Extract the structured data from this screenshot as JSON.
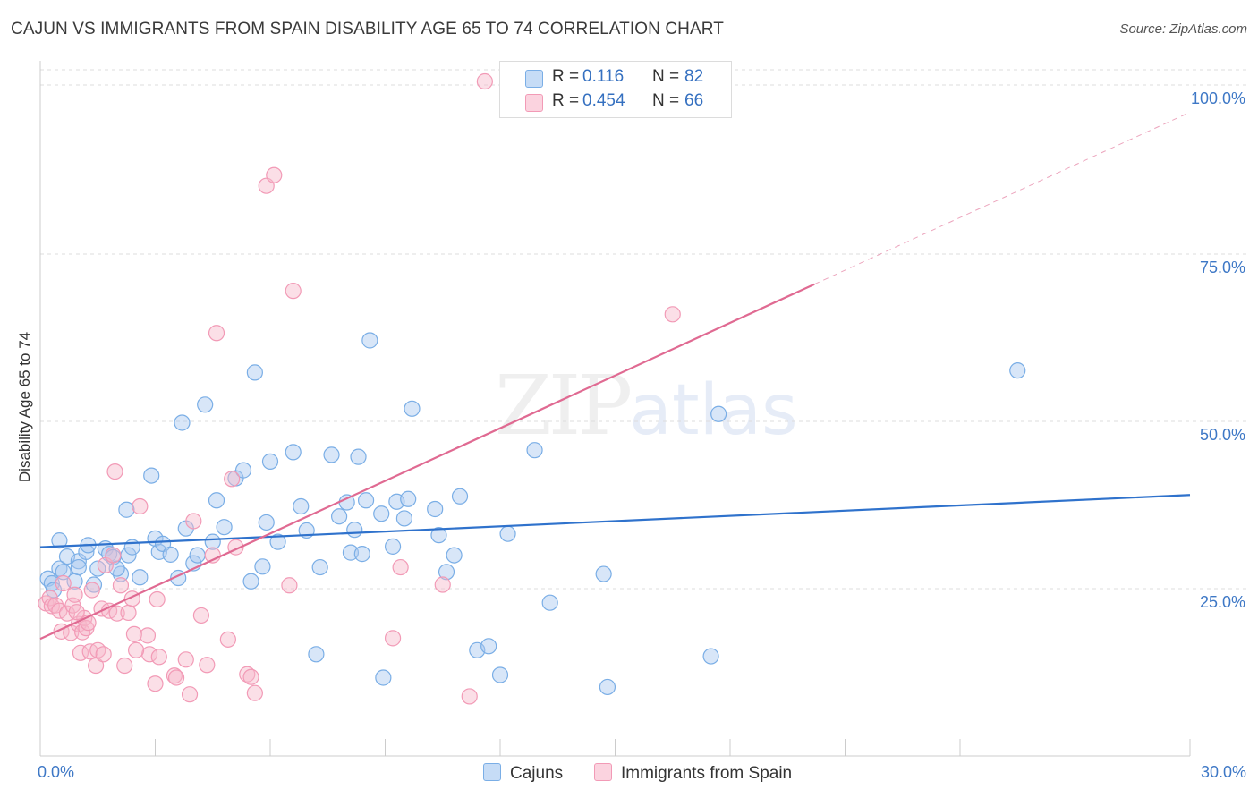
{
  "header": {
    "title": "CAJUN VS IMMIGRANTS FROM SPAIN DISABILITY AGE 65 TO 74 CORRELATION CHART",
    "source": "Source: ZipAtlas.com"
  },
  "watermark": {
    "zip": "ZIP",
    "atlas": "atlas"
  },
  "legend": {
    "rows": [
      {
        "r_label": "R =",
        "r_value": "0.116",
        "n_label": "N =",
        "n_value": "82",
        "color": "#a8c8f0"
      },
      {
        "r_label": "R =",
        "r_value": "0.454",
        "n_label": "N =",
        "n_value": "66",
        "color": "#f6b7c9"
      }
    ]
  },
  "bottom_legend": {
    "cajuns": "Cajuns",
    "spain": "Immigrants from Spain"
  },
  "chart_data": {
    "type": "scatter",
    "title": "CAJUN VS IMMIGRANTS FROM SPAIN DISABILITY AGE 65 TO 74 CORRELATION CHART",
    "xlabel": "",
    "ylabel": "Disability Age 65 to 74",
    "xlim": [
      0,
      30
    ],
    "ylim": [
      0,
      100
    ],
    "x_ticks": [
      0,
      3,
      6,
      9,
      12,
      15,
      18,
      21,
      24,
      27,
      30
    ],
    "x_tick_labels": {
      "0": "0.0%",
      "30": "30.0%"
    },
    "y_ticks": [
      25,
      50,
      75,
      100
    ],
    "y_tick_labels": [
      "25.0%",
      "50.0%",
      "75.0%",
      "100.0%"
    ],
    "grid": true,
    "colors": {
      "cajuns": "#7aaee6",
      "spain": "#f29ab6",
      "cajuns_line": "#2f72cc",
      "spain_line": "#e06a92",
      "tick_text": "#3e78c6"
    },
    "series": [
      {
        "name": "Cajuns",
        "trend": {
          "x": [
            0,
            30
          ],
          "y": [
            31.2,
            39.0
          ]
        },
        "points": [
          [
            0.2,
            26.5
          ],
          [
            0.3,
            25.8
          ],
          [
            0.35,
            24.8
          ],
          [
            0.5,
            28.0
          ],
          [
            0.5,
            32.2
          ],
          [
            0.6,
            27.5
          ],
          [
            0.7,
            29.8
          ],
          [
            0.9,
            26.1
          ],
          [
            1.0,
            29.1
          ],
          [
            1.2,
            30.5
          ],
          [
            1.25,
            31.5
          ],
          [
            1.4,
            25.6
          ],
          [
            1.5,
            28.0
          ],
          [
            1.7,
            31.0
          ],
          [
            1.8,
            30.2
          ],
          [
            1.9,
            29.7
          ],
          [
            2.1,
            27.2
          ],
          [
            2.25,
            36.8
          ],
          [
            2.3,
            30.0
          ],
          [
            2.4,
            31.2
          ],
          [
            2.6,
            26.7
          ],
          [
            2.9,
            41.9
          ],
          [
            3.0,
            32.5
          ],
          [
            3.1,
            30.5
          ],
          [
            3.2,
            31.7
          ],
          [
            3.4,
            30.1
          ],
          [
            3.6,
            26.6
          ],
          [
            3.7,
            49.8
          ],
          [
            3.8,
            34.0
          ],
          [
            4.0,
            28.8
          ],
          [
            4.1,
            30.0
          ],
          [
            4.3,
            52.5
          ],
          [
            4.5,
            32.0
          ],
          [
            4.6,
            38.2
          ],
          [
            4.8,
            34.2
          ],
          [
            5.1,
            41.5
          ],
          [
            5.3,
            42.7
          ],
          [
            5.5,
            26.1
          ],
          [
            5.6,
            57.3
          ],
          [
            5.8,
            28.3
          ],
          [
            5.9,
            34.9
          ],
          [
            6.0,
            44.0
          ],
          [
            6.2,
            32.0
          ],
          [
            6.6,
            45.4
          ],
          [
            6.8,
            37.3
          ],
          [
            6.95,
            33.7
          ],
          [
            7.2,
            15.2
          ],
          [
            7.3,
            28.2
          ],
          [
            7.6,
            45.0
          ],
          [
            7.8,
            35.8
          ],
          [
            8.0,
            37.9
          ],
          [
            8.1,
            30.4
          ],
          [
            8.2,
            33.8
          ],
          [
            8.3,
            44.7
          ],
          [
            8.4,
            30.2
          ],
          [
            8.5,
            38.2
          ],
          [
            8.6,
            62.1
          ],
          [
            8.9,
            36.2
          ],
          [
            8.95,
            11.7
          ],
          [
            9.2,
            31.3
          ],
          [
            9.3,
            38.0
          ],
          [
            9.5,
            35.5
          ],
          [
            9.6,
            38.4
          ],
          [
            9.7,
            51.9
          ],
          [
            10.3,
            36.9
          ],
          [
            10.4,
            33.0
          ],
          [
            10.6,
            27.5
          ],
          [
            10.8,
            30.0
          ],
          [
            10.95,
            38.8
          ],
          [
            11.4,
            15.8
          ],
          [
            11.7,
            16.4
          ],
          [
            12.0,
            12.1
          ],
          [
            12.2,
            33.2
          ],
          [
            12.9,
            45.7
          ],
          [
            13.3,
            22.9
          ],
          [
            14.7,
            27.2
          ],
          [
            14.8,
            10.3
          ],
          [
            17.5,
            14.9
          ],
          [
            17.7,
            51.1
          ],
          [
            25.5,
            57.6
          ],
          [
            1.0,
            28.2
          ],
          [
            2.0,
            28.0
          ]
        ]
      },
      {
        "name": "Immigrants from Spain",
        "trend": {
          "x": [
            0,
            30
          ],
          "y": [
            17.5,
            96.2
          ],
          "solid_until_x": 20.2
        },
        "points": [
          [
            0.15,
            22.8
          ],
          [
            0.25,
            23.6
          ],
          [
            0.3,
            22.4
          ],
          [
            0.4,
            22.5
          ],
          [
            0.5,
            21.7
          ],
          [
            0.55,
            18.6
          ],
          [
            0.6,
            25.8
          ],
          [
            0.7,
            21.3
          ],
          [
            0.8,
            18.4
          ],
          [
            0.85,
            22.5
          ],
          [
            0.9,
            24.1
          ],
          [
            1.0,
            19.7
          ],
          [
            1.05,
            15.4
          ],
          [
            1.1,
            18.5
          ],
          [
            1.15,
            20.6
          ],
          [
            1.2,
            19.1
          ],
          [
            1.3,
            15.6
          ],
          [
            1.35,
            24.8
          ],
          [
            1.45,
            13.5
          ],
          [
            1.5,
            15.8
          ],
          [
            1.6,
            22.0
          ],
          [
            1.65,
            15.2
          ],
          [
            1.7,
            28.5
          ],
          [
            1.8,
            21.7
          ],
          [
            1.9,
            30.0
          ],
          [
            1.95,
            42.5
          ],
          [
            2.0,
            21.3
          ],
          [
            2.1,
            25.5
          ],
          [
            2.2,
            13.5
          ],
          [
            2.3,
            21.4
          ],
          [
            2.4,
            23.5
          ],
          [
            2.45,
            18.2
          ],
          [
            2.6,
            37.3
          ],
          [
            2.8,
            18.0
          ],
          [
            2.85,
            15.2
          ],
          [
            3.0,
            10.8
          ],
          [
            3.05,
            23.4
          ],
          [
            3.1,
            14.8
          ],
          [
            3.5,
            12.0
          ],
          [
            3.55,
            11.7
          ],
          [
            3.8,
            14.4
          ],
          [
            3.9,
            9.2
          ],
          [
            4.0,
            35.1
          ],
          [
            4.35,
            13.6
          ],
          [
            4.5,
            30.0
          ],
          [
            4.6,
            63.2
          ],
          [
            4.9,
            17.4
          ],
          [
            5.0,
            41.4
          ],
          [
            5.1,
            31.2
          ],
          [
            5.4,
            12.2
          ],
          [
            5.5,
            11.8
          ],
          [
            5.6,
            9.4
          ],
          [
            5.9,
            85.2
          ],
          [
            6.1,
            86.8
          ],
          [
            6.5,
            25.5
          ],
          [
            6.6,
            69.5
          ],
          [
            9.2,
            17.6
          ],
          [
            9.4,
            28.2
          ],
          [
            10.5,
            25.6
          ],
          [
            11.2,
            8.9
          ],
          [
            11.6,
            100.8
          ],
          [
            16.5,
            66.0
          ],
          [
            0.95,
            21.5
          ],
          [
            2.5,
            15.8
          ],
          [
            4.2,
            21.0
          ],
          [
            1.25,
            19.9
          ]
        ]
      }
    ]
  }
}
